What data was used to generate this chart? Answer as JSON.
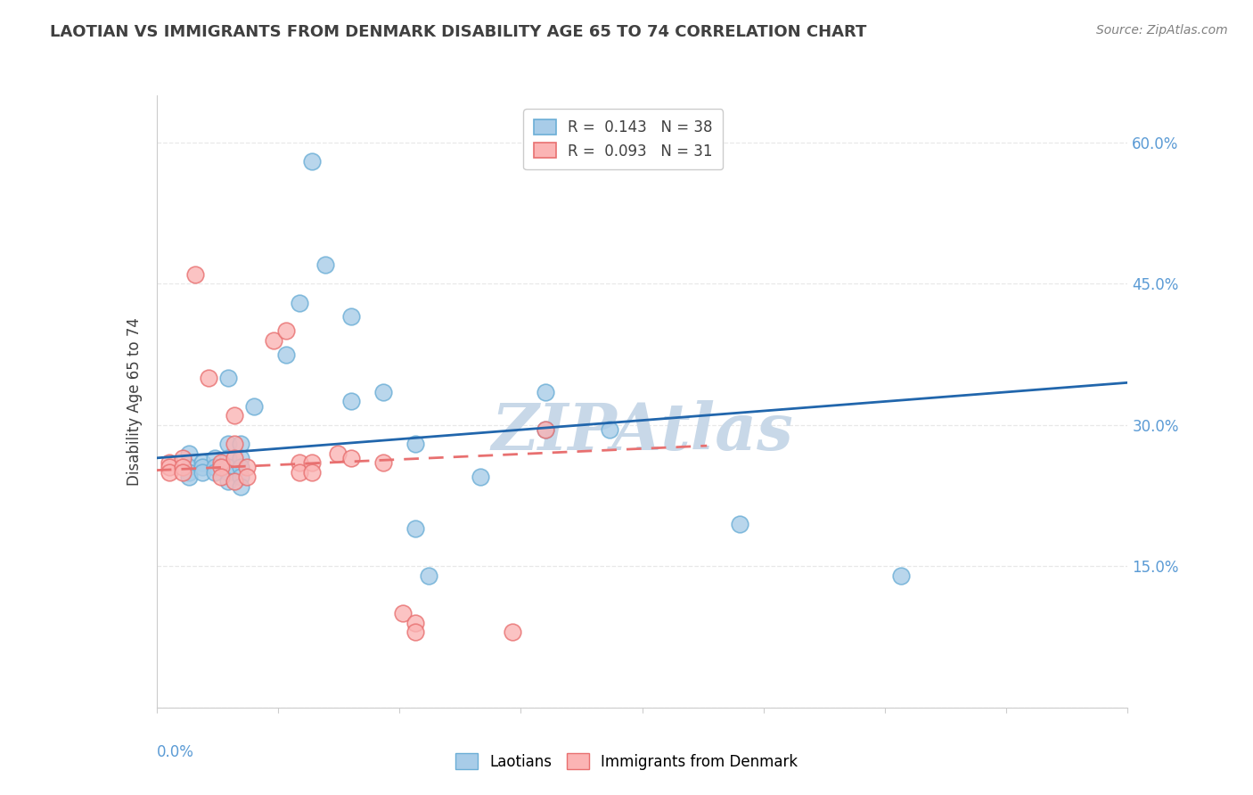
{
  "title": "LAOTIAN VS IMMIGRANTS FROM DENMARK DISABILITY AGE 65 TO 74 CORRELATION CHART",
  "source": "Source: ZipAtlas.com",
  "ylabel": "Disability Age 65 to 74",
  "xlim": [
    0.0,
    0.15
  ],
  "ylim": [
    0.0,
    0.65
  ],
  "r_blue": 0.143,
  "n_blue": 38,
  "r_pink": 0.093,
  "n_pink": 31,
  "blue_face_color": "#a8cce8",
  "blue_edge_color": "#6baed6",
  "pink_face_color": "#fbb4b4",
  "pink_edge_color": "#e87070",
  "trendline_blue_color": "#2166ac",
  "trendline_pink_color": "#e87070",
  "watermark_color": "#c8d8e8",
  "background_color": "#ffffff",
  "blue_scatter": [
    [
      0.005,
      0.27
    ],
    [
      0.005,
      0.255
    ],
    [
      0.005,
      0.25
    ],
    [
      0.005,
      0.245
    ],
    [
      0.007,
      0.26
    ],
    [
      0.007,
      0.255
    ],
    [
      0.007,
      0.25
    ],
    [
      0.009,
      0.265
    ],
    [
      0.009,
      0.255
    ],
    [
      0.009,
      0.25
    ],
    [
      0.011,
      0.35
    ],
    [
      0.011,
      0.28
    ],
    [
      0.011,
      0.265
    ],
    [
      0.011,
      0.255
    ],
    [
      0.011,
      0.25
    ],
    [
      0.011,
      0.24
    ],
    [
      0.013,
      0.28
    ],
    [
      0.013,
      0.265
    ],
    [
      0.013,
      0.255
    ],
    [
      0.013,
      0.245
    ],
    [
      0.013,
      0.235
    ],
    [
      0.015,
      0.32
    ],
    [
      0.02,
      0.375
    ],
    [
      0.022,
      0.43
    ],
    [
      0.024,
      0.58
    ],
    [
      0.026,
      0.47
    ],
    [
      0.03,
      0.415
    ],
    [
      0.03,
      0.325
    ],
    [
      0.035,
      0.335
    ],
    [
      0.04,
      0.28
    ],
    [
      0.04,
      0.19
    ],
    [
      0.042,
      0.14
    ],
    [
      0.05,
      0.245
    ],
    [
      0.06,
      0.335
    ],
    [
      0.06,
      0.295
    ],
    [
      0.07,
      0.295
    ],
    [
      0.09,
      0.195
    ],
    [
      0.115,
      0.14
    ]
  ],
  "pink_scatter": [
    [
      0.002,
      0.26
    ],
    [
      0.002,
      0.255
    ],
    [
      0.002,
      0.25
    ],
    [
      0.004,
      0.265
    ],
    [
      0.004,
      0.255
    ],
    [
      0.004,
      0.25
    ],
    [
      0.006,
      0.46
    ],
    [
      0.008,
      0.35
    ],
    [
      0.01,
      0.26
    ],
    [
      0.01,
      0.255
    ],
    [
      0.01,
      0.245
    ],
    [
      0.012,
      0.31
    ],
    [
      0.012,
      0.28
    ],
    [
      0.012,
      0.265
    ],
    [
      0.012,
      0.24
    ],
    [
      0.014,
      0.255
    ],
    [
      0.014,
      0.245
    ],
    [
      0.018,
      0.39
    ],
    [
      0.02,
      0.4
    ],
    [
      0.022,
      0.26
    ],
    [
      0.022,
      0.25
    ],
    [
      0.024,
      0.26
    ],
    [
      0.024,
      0.25
    ],
    [
      0.028,
      0.27
    ],
    [
      0.03,
      0.265
    ],
    [
      0.035,
      0.26
    ],
    [
      0.038,
      0.1
    ],
    [
      0.04,
      0.09
    ],
    [
      0.04,
      0.08
    ],
    [
      0.055,
      0.08
    ],
    [
      0.06,
      0.295
    ]
  ],
  "blue_trend_x": [
    0.0,
    0.15
  ],
  "blue_trend_y": [
    0.265,
    0.345
  ],
  "pink_trend_x": [
    0.0,
    0.085
  ],
  "pink_trend_y": [
    0.252,
    0.278
  ],
  "ytick_positions": [
    0.0,
    0.15,
    0.3,
    0.45,
    0.6
  ],
  "ytick_labels": [
    "",
    "15.0%",
    "30.0%",
    "45.0%",
    "60.0%"
  ],
  "grid_color": "#e8e8e8",
  "axis_label_color": "#5b9bd5",
  "text_color": "#404040",
  "source_color": "#808080"
}
